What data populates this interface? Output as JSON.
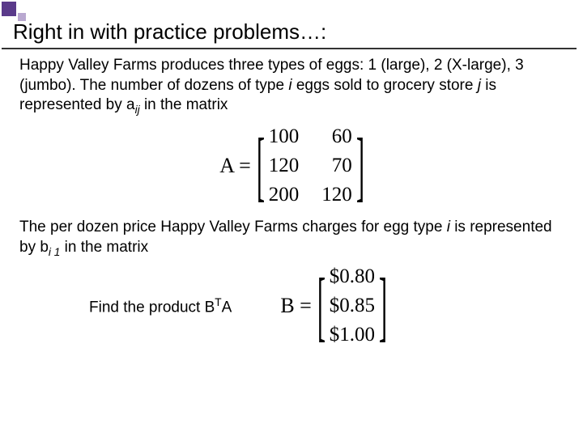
{
  "title": "Right in with practice problems…:",
  "para1_a": "Happy Valley Farms produces three types of eggs: 1 (large), 2 (X-large), 3 (jumbo).  The number of dozens of type ",
  "para1_i": "i",
  "para1_b": "  eggs sold to grocery store ",
  "para1_j": "j",
  "para1_c": "  is represented by a",
  "para1_sub": "ij",
  "para1_d": " in the matrix",
  "matrixA_label": "A =",
  "matrixA": {
    "r0c0": "100",
    "r0c1": "60",
    "r1c0": "120",
    "r1c1": "70",
    "r2c0": "200",
    "r2c1": "120"
  },
  "para2_a": "The per dozen price Happy Valley Farms charges for egg type ",
  "para2_i": "i",
  "para2_b": " is represented by b",
  "para2_sub": "i 1",
  "para2_c": " in the matrix",
  "find_a": "Find the product B",
  "find_sup": "T",
  "find_b": "A",
  "matrixB_label": "B =",
  "matrixB": {
    "r0": "$0.80",
    "r1": "$0.85",
    "r2": "$1.00"
  }
}
